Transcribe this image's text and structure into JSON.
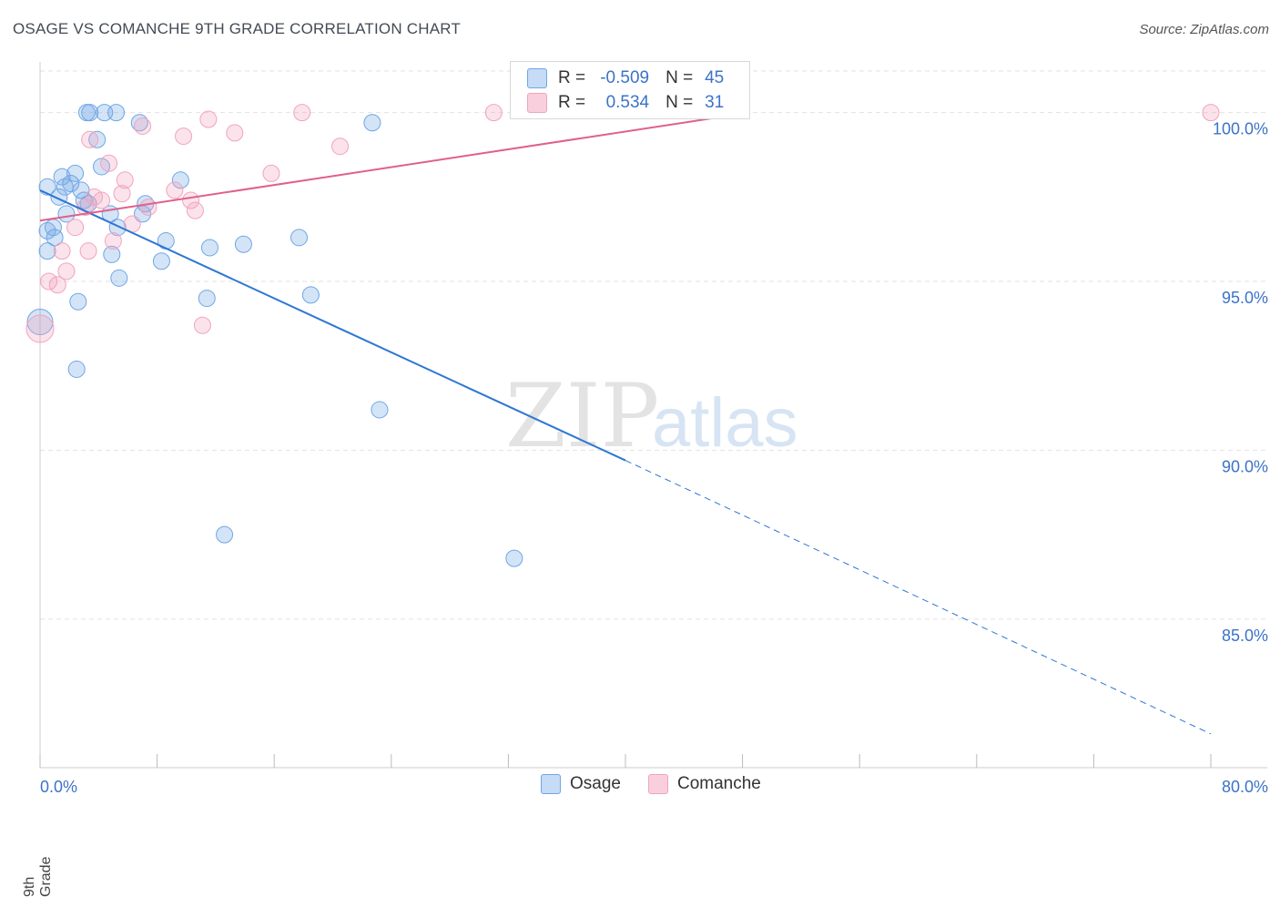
{
  "title": "OSAGE VS COMANCHE 9TH GRADE CORRELATION CHART",
  "source": "Source: ZipAtlas.com",
  "watermark": {
    "zip": "ZIP",
    "atlas": "atlas"
  },
  "colors": {
    "osage": "#6fa6e6",
    "osage_line": "#2e76d4",
    "comanche": "#f2a3bd",
    "comanche_line": "#e0608a",
    "tick_text": "#3b73c8"
  },
  "stats": {
    "osage": {
      "r_label": "R =",
      "r": "-0.509",
      "n_label": "N =",
      "n": "45"
    },
    "comanche": {
      "r_label": "R =",
      "r": "0.534",
      "n_label": "N =",
      "n": "31"
    }
  },
  "legend": {
    "osage": "Osage",
    "comanche": "Comanche"
  },
  "chart_data": {
    "type": "scatter",
    "title": "OSAGE VS COMANCHE 9TH GRADE CORRELATION CHART",
    "xlabel": "",
    "ylabel": "9th Grade",
    "xlim": [
      0,
      80
    ],
    "ylim": [
      80.6,
      101.5
    ],
    "x_tick_labels": {
      "min": "0.0%",
      "max": "80.0%"
    },
    "y_ticks": [
      {
        "value": 100,
        "label": "100.0%"
      },
      {
        "value": 95,
        "label": "95.0%"
      },
      {
        "value": 90,
        "label": "90.0%"
      },
      {
        "value": 85,
        "label": "85.0%"
      }
    ],
    "series": [
      {
        "name": "Osage",
        "points": [
          [
            0.0,
            93.8,
            24
          ],
          [
            0.5,
            97.8,
            14
          ],
          [
            0.5,
            96.5,
            14
          ],
          [
            0.5,
            95.9,
            14
          ],
          [
            0.9,
            96.6,
            14
          ],
          [
            1.0,
            96.3,
            14
          ],
          [
            1.3,
            97.5,
            14
          ],
          [
            1.5,
            98.1,
            14
          ],
          [
            1.7,
            97.8,
            14
          ],
          [
            1.8,
            97.0,
            14
          ],
          [
            2.1,
            97.9,
            14
          ],
          [
            2.4,
            98.2,
            14
          ],
          [
            2.5,
            92.4,
            14
          ],
          [
            2.6,
            94.4,
            14
          ],
          [
            2.8,
            97.7,
            14
          ],
          [
            3.0,
            97.4,
            14
          ],
          [
            3.3,
            97.3,
            14
          ],
          [
            3.2,
            100.0,
            14
          ],
          [
            3.4,
            100.0,
            14
          ],
          [
            3.9,
            99.2,
            14
          ],
          [
            4.2,
            98.4,
            14
          ],
          [
            4.4,
            100.0,
            14
          ],
          [
            4.8,
            97.0,
            14
          ],
          [
            4.9,
            95.8,
            14
          ],
          [
            5.2,
            100.0,
            14
          ],
          [
            5.3,
            96.6,
            14
          ],
          [
            5.4,
            95.1,
            14
          ],
          [
            6.8,
            99.7,
            14
          ],
          [
            7.0,
            97.0,
            14
          ],
          [
            7.2,
            97.3,
            14
          ],
          [
            8.3,
            95.6,
            14
          ],
          [
            8.6,
            96.2,
            14
          ],
          [
            9.6,
            98.0,
            14
          ],
          [
            11.4,
            94.5,
            14
          ],
          [
            11.6,
            96.0,
            14
          ],
          [
            12.6,
            87.5,
            14
          ],
          [
            13.9,
            96.1,
            14
          ],
          [
            17.7,
            96.3,
            14
          ],
          [
            18.5,
            94.6,
            14
          ],
          [
            22.7,
            99.7,
            14
          ],
          [
            23.2,
            91.2,
            14
          ],
          [
            32.4,
            86.8,
            14
          ]
        ],
        "trend": {
          "x0": 0.0,
          "y0": 97.7,
          "x1": 40.0,
          "y1": 89.7,
          "dashed_to_x": 80.0,
          "dashed_to_y": 81.6
        }
      },
      {
        "name": "Comanche",
        "points": [
          [
            0.0,
            93.6,
            26
          ],
          [
            0.6,
            95.0,
            14
          ],
          [
            1.2,
            94.9,
            14
          ],
          [
            1.5,
            95.9,
            14
          ],
          [
            1.8,
            95.3,
            14
          ],
          [
            2.4,
            96.6,
            14
          ],
          [
            3.1,
            97.2,
            14
          ],
          [
            3.3,
            95.9,
            14
          ],
          [
            3.4,
            99.2,
            14
          ],
          [
            3.7,
            97.5,
            14
          ],
          [
            4.2,
            97.4,
            14
          ],
          [
            4.7,
            98.5,
            14
          ],
          [
            5.0,
            96.2,
            14
          ],
          [
            5.6,
            97.6,
            14
          ],
          [
            5.8,
            98.0,
            14
          ],
          [
            6.3,
            96.7,
            14
          ],
          [
            7.0,
            99.6,
            14
          ],
          [
            7.4,
            97.2,
            14
          ],
          [
            9.2,
            97.7,
            14
          ],
          [
            9.8,
            99.3,
            14
          ],
          [
            10.3,
            97.4,
            14
          ],
          [
            10.6,
            97.1,
            14
          ],
          [
            11.1,
            93.7,
            14
          ],
          [
            11.5,
            99.8,
            14
          ],
          [
            13.3,
            99.4,
            14
          ],
          [
            15.8,
            98.2,
            14
          ],
          [
            17.9,
            100.0,
            14
          ],
          [
            20.5,
            99.0,
            14
          ],
          [
            31.0,
            100.0,
            14
          ],
          [
            80.0,
            100.0,
            14
          ]
        ],
        "trend": {
          "x0": 0.0,
          "y0": 96.8,
          "x1": 48.5,
          "y1": 100.0
        }
      }
    ]
  }
}
